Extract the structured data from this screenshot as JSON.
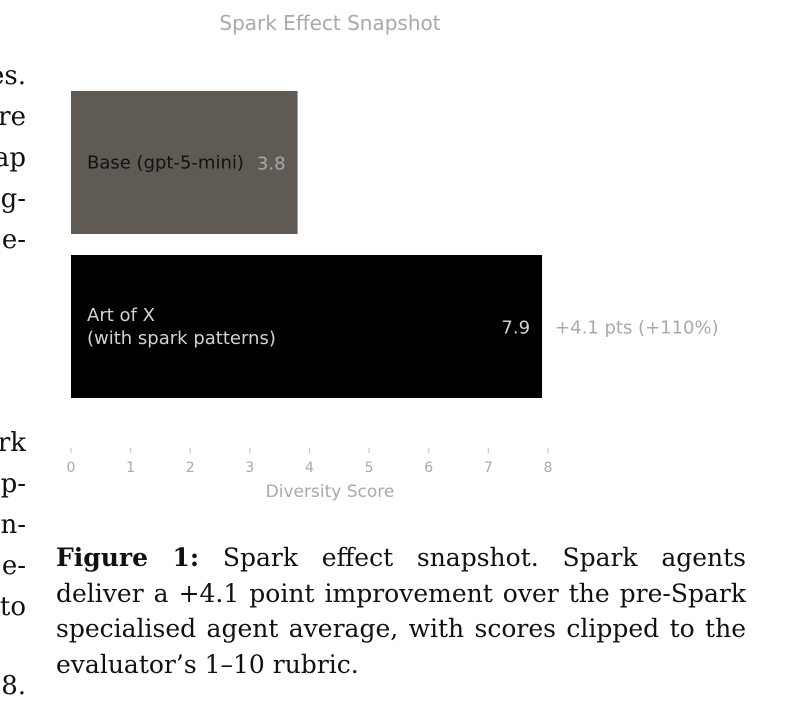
{
  "left_column_fragments": [
    "es.",
    "re",
    "ap",
    "g-",
    "e-",
    "rk",
    "p-",
    "n-",
    "e-",
    "to",
    "8."
  ],
  "chart_data": {
    "type": "bar",
    "orientation": "horizontal",
    "title": "Spark Effect Snapshot",
    "xlabel": "Diversity Score",
    "ylabel": "",
    "xlim": [
      0,
      8
    ],
    "xticks": [
      "0",
      "1",
      "2",
      "3",
      "4",
      "5",
      "6",
      "7",
      "8"
    ],
    "categories": [
      "Base (gpt-5-mini)",
      "Art of X (with spark patterns)"
    ],
    "category_lines": [
      [
        "Base (gpt-5-mini)"
      ],
      [
        "Art of X",
        "(with spark patterns)"
      ]
    ],
    "values": [
      3.8,
      7.9
    ],
    "value_labels": [
      "3.8",
      "7.9"
    ],
    "annotation": "+4.1 pts (+110%)",
    "grid": false,
    "colors": {
      "base_bar": "#5f5a54",
      "spark_bar": "#000000",
      "muted_text": "#a9a9a9",
      "base_label": "#111111",
      "spark_label": "#d2d2d2"
    }
  },
  "caption": {
    "label": "Figure 1:",
    "text": "Spark effect snapshot. Spark agents deliver a +4.1 point improvement over the pre-Spark specialised agent average, with scores clipped to the evaluator’s 1–10 rubric."
  }
}
